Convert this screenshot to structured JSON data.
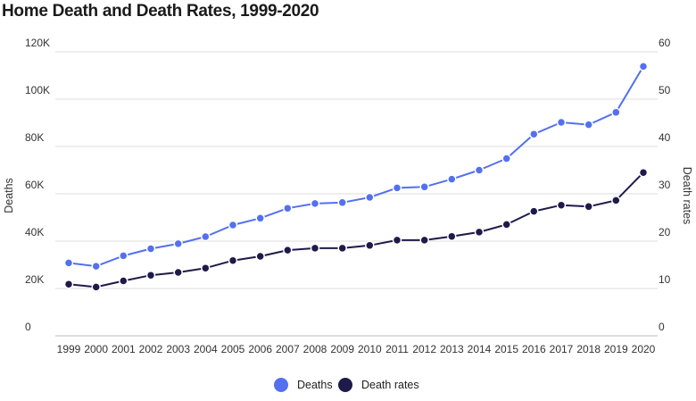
{
  "chart_data": {
    "type": "line",
    "title": "Home Death and Death Rates, 1999-2020",
    "ylabel": "Deaths",
    "y2label": "Death rates",
    "x": [
      "1999",
      "2000",
      "2001",
      "2002",
      "2003",
      "2004",
      "2005",
      "2006",
      "2007",
      "2008",
      "2009",
      "2010",
      "2011",
      "2012",
      "2013",
      "2014",
      "2015",
      "2016",
      "2017",
      "2018",
      "2019",
      "2020"
    ],
    "yticks": [
      "0",
      "20K",
      "40K",
      "60K",
      "80K",
      "100K",
      "120K"
    ],
    "y2ticks": [
      "0",
      "10",
      "20",
      "30",
      "40",
      "50",
      "60"
    ],
    "ylim": [
      0,
      120000
    ],
    "y2lim": [
      0,
      60
    ],
    "grid": true,
    "legend": "bottom",
    "series": [
      {
        "name": "Deaths",
        "axis": "left",
        "color": "#5470f0",
        "values": [
          30800,
          29400,
          33800,
          36800,
          38900,
          41900,
          46800,
          49700,
          53900,
          55900,
          56300,
          58500,
          62500,
          62900,
          66200,
          70000,
          74900,
          85200,
          90200,
          89200,
          94400,
          113800
        ]
      },
      {
        "name": "Death rates",
        "axis": "right",
        "color": "#1e1b4a",
        "values": [
          10.9,
          10.3,
          11.6,
          12.8,
          13.4,
          14.3,
          15.9,
          16.8,
          18.1,
          18.5,
          18.5,
          19.1,
          20.2,
          20.2,
          21.0,
          21.9,
          23.5,
          26.3,
          27.6,
          27.3,
          28.6,
          34.5
        ]
      }
    ]
  }
}
